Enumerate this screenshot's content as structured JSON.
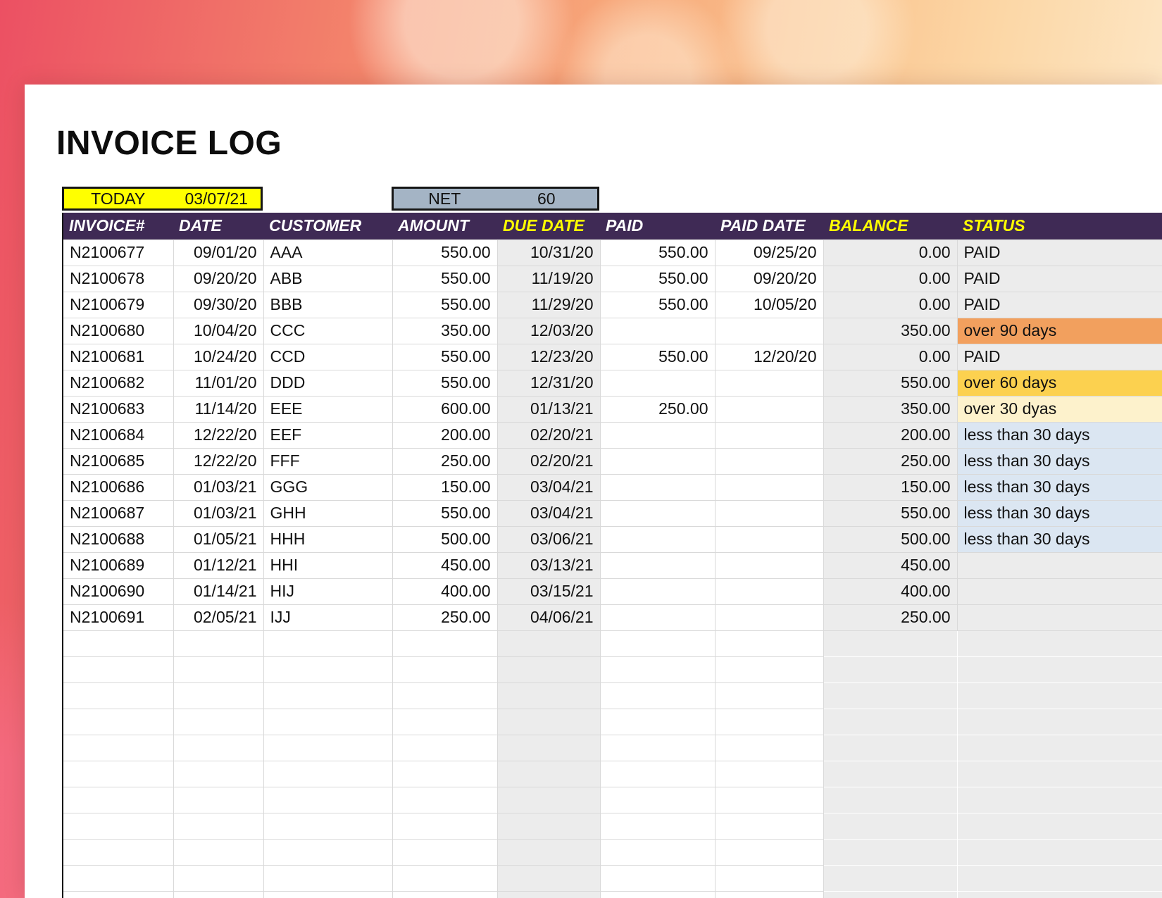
{
  "title": "INVOICE LOG",
  "info": {
    "today_label": "TODAY",
    "today_value": "03/07/21",
    "net_label": "NET",
    "net_value": "60"
  },
  "columns": [
    {
      "key": "invoice",
      "label": "INVOICE#",
      "accent": false
    },
    {
      "key": "date",
      "label": "DATE",
      "accent": false
    },
    {
      "key": "customer",
      "label": "CUSTOMER",
      "accent": false
    },
    {
      "key": "amount",
      "label": "AMOUNT",
      "accent": false
    },
    {
      "key": "due_date",
      "label": "DUE DATE",
      "accent": true
    },
    {
      "key": "paid",
      "label": "PAID",
      "accent": false
    },
    {
      "key": "paid_date",
      "label": "PAID DATE",
      "accent": false
    },
    {
      "key": "balance",
      "label": "BALANCE",
      "accent": true
    },
    {
      "key": "status",
      "label": "STATUS",
      "accent": true
    }
  ],
  "rows": [
    {
      "invoice": "N2100677",
      "date": "09/01/20",
      "customer": "AAA",
      "amount": "550.00",
      "due_date": "10/31/20",
      "paid": "550.00",
      "paid_date": "09/25/20",
      "balance": "0.00",
      "status": "PAID",
      "status_class": "paid"
    },
    {
      "invoice": "N2100678",
      "date": "09/20/20",
      "customer": "ABB",
      "amount": "550.00",
      "due_date": "11/19/20",
      "paid": "550.00",
      "paid_date": "09/20/20",
      "balance": "0.00",
      "status": "PAID",
      "status_class": "paid"
    },
    {
      "invoice": "N2100679",
      "date": "09/30/20",
      "customer": "BBB",
      "amount": "550.00",
      "due_date": "11/29/20",
      "paid": "550.00",
      "paid_date": "10/05/20",
      "balance": "0.00",
      "status": "PAID",
      "status_class": "paid"
    },
    {
      "invoice": "N2100680",
      "date": "10/04/20",
      "customer": "CCC",
      "amount": "350.00",
      "due_date": "12/03/20",
      "paid": "",
      "paid_date": "",
      "balance": "350.00",
      "status": "over 90 days",
      "status_class": "over90"
    },
    {
      "invoice": "N2100681",
      "date": "10/24/20",
      "customer": "CCD",
      "amount": "550.00",
      "due_date": "12/23/20",
      "paid": "550.00",
      "paid_date": "12/20/20",
      "balance": "0.00",
      "status": "PAID",
      "status_class": "paid"
    },
    {
      "invoice": "N2100682",
      "date": "11/01/20",
      "customer": "DDD",
      "amount": "550.00",
      "due_date": "12/31/20",
      "paid": "",
      "paid_date": "",
      "balance": "550.00",
      "status": "over 60 days",
      "status_class": "over60"
    },
    {
      "invoice": "N2100683",
      "date": "11/14/20",
      "customer": "EEE",
      "amount": "600.00",
      "due_date": "01/13/21",
      "paid": "250.00",
      "paid_date": "",
      "balance": "350.00",
      "status": "over 30 dyas",
      "status_class": "over30"
    },
    {
      "invoice": "N2100684",
      "date": "12/22/20",
      "customer": "EEF",
      "amount": "200.00",
      "due_date": "02/20/21",
      "paid": "",
      "paid_date": "",
      "balance": "200.00",
      "status": "less than 30 days",
      "status_class": "lt30"
    },
    {
      "invoice": "N2100685",
      "date": "12/22/20",
      "customer": "FFF",
      "amount": "250.00",
      "due_date": "02/20/21",
      "paid": "",
      "paid_date": "",
      "balance": "250.00",
      "status": "less than 30 days",
      "status_class": "lt30"
    },
    {
      "invoice": "N2100686",
      "date": "01/03/21",
      "customer": "GGG",
      "amount": "150.00",
      "due_date": "03/04/21",
      "paid": "",
      "paid_date": "",
      "balance": "150.00",
      "status": "less than 30 days",
      "status_class": "lt30"
    },
    {
      "invoice": "N2100687",
      "date": "01/03/21",
      "customer": "GHH",
      "amount": "550.00",
      "due_date": "03/04/21",
      "paid": "",
      "paid_date": "",
      "balance": "550.00",
      "status": "less than 30 days",
      "status_class": "lt30"
    },
    {
      "invoice": "N2100688",
      "date": "01/05/21",
      "customer": "HHH",
      "amount": "500.00",
      "due_date": "03/06/21",
      "paid": "",
      "paid_date": "",
      "balance": "500.00",
      "status": "less than 30 days",
      "status_class": "lt30"
    },
    {
      "invoice": "N2100689",
      "date": "01/12/21",
      "customer": "HHI",
      "amount": "450.00",
      "due_date": "03/13/21",
      "paid": "",
      "paid_date": "",
      "balance": "450.00",
      "status": "",
      "status_class": ""
    },
    {
      "invoice": "N2100690",
      "date": "01/14/21",
      "customer": "HIJ",
      "amount": "400.00",
      "due_date": "03/15/21",
      "paid": "",
      "paid_date": "",
      "balance": "400.00",
      "status": "",
      "status_class": ""
    },
    {
      "invoice": "N2100691",
      "date": "02/05/21",
      "customer": "IJJ",
      "amount": "250.00",
      "due_date": "04/06/21",
      "paid": "",
      "paid_date": "",
      "balance": "250.00",
      "status": "",
      "status_class": ""
    }
  ],
  "empty_rows": 11,
  "colors": {
    "header-bg": "#3f2a55",
    "header-text": "#ffffff",
    "header-accent": "#ffff00",
    "today-bg": "#ffff00",
    "net-bg": "#a4b4c5",
    "calc-col-bg": "#ececec",
    "status-over90": "#f2a05e",
    "status-over60": "#fcd14f",
    "status-over30": "#fdf2cc",
    "status-lt30": "#dbe6f2"
  }
}
